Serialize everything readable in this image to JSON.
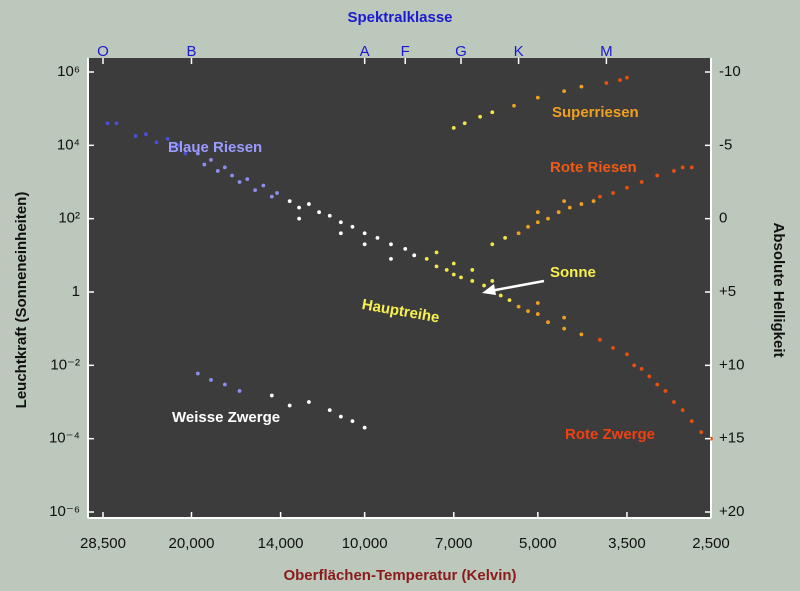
{
  "chart_data": {
    "type": "scatter",
    "title": "Spektralklasse",
    "x_label": "Oberflächen-Temperatur (Kelvin)",
    "y_label": "Leuchtkraft (Sonneneinheiten)",
    "y2_label": "Absolute Helligkeit",
    "log_x": true,
    "log_y": true,
    "grid": false,
    "xlim": [
      28500,
      2500
    ],
    "xticks": [
      {
        "value": 28500,
        "label": "28,500"
      },
      {
        "value": 20000,
        "label": "20,000"
      },
      {
        "value": 14000,
        "label": "14,000"
      },
      {
        "value": 10000,
        "label": "10,000"
      },
      {
        "value": 7000,
        "label": "7,000"
      },
      {
        "value": 5000,
        "label": "5,000"
      },
      {
        "value": 3500,
        "label": "3,500"
      },
      {
        "value": 2500,
        "label": "2,500"
      }
    ],
    "x2ticks": [
      {
        "value": 28500,
        "label": "O"
      },
      {
        "value": 20000,
        "label": "B"
      },
      {
        "value": 10000,
        "label": "A"
      },
      {
        "value": 8500,
        "label": "F"
      },
      {
        "value": 6800,
        "label": "G"
      },
      {
        "value": 5400,
        "label": "K"
      },
      {
        "value": 3800,
        "label": "M"
      }
    ],
    "ylim": [
      1e-06,
      1000000
    ],
    "yticks": [
      {
        "value": 1000000,
        "label": "10⁶"
      },
      {
        "value": 10000,
        "label": "10⁴"
      },
      {
        "value": 100,
        "label": "10²"
      },
      1,
      {
        "value": 0.01,
        "label": "10⁻²"
      },
      {
        "value": 0.0001,
        "label": "10⁻⁴"
      },
      {
        "value": 1e-06,
        "label": "10⁻⁶"
      }
    ],
    "y2lim": [
      20,
      -10
    ],
    "y2ticks": [
      -10,
      -5,
      0,
      {
        "value": 5,
        "label": "+5"
      },
      {
        "value": 10,
        "label": "+10"
      },
      {
        "value": 15,
        "label": "+15"
      },
      {
        "value": 20,
        "label": "+20"
      }
    ],
    "series": [
      {
        "color": "#4a50d8",
        "x": [
          28000,
          27000,
          25000,
          24000,
          23000,
          22000,
          21500,
          21000,
          20500
        ],
        "y": [
          40000,
          40000,
          18000,
          20000,
          12000,
          15000,
          9000,
          10000,
          6000
        ]
      },
      {
        "color": "#8c8ef0",
        "x": [
          19500,
          19000,
          18500,
          18000,
          17500,
          17000,
          16500,
          16000,
          15500,
          15000,
          14500,
          14200,
          19500,
          18500,
          17500,
          16500
        ],
        "y": [
          6000,
          3000,
          4000,
          2000,
          2500,
          1500,
          1000,
          1200,
          600,
          800,
          400,
          500,
          0.006,
          0.004,
          0.003,
          0.002
        ]
      },
      {
        "color": "#ffffff",
        "x": [
          13500,
          13000,
          12500,
          12000,
          11500,
          11000,
          10500,
          10000,
          9500,
          9000,
          8500,
          8200,
          13000,
          11000,
          10000,
          9000,
          14500,
          13500,
          12500,
          11500,
          11000,
          10500,
          10000
        ],
        "y": [
          300,
          200,
          250,
          150,
          120,
          80,
          60,
          40,
          30,
          20,
          15,
          10,
          100,
          40,
          20,
          8,
          0.0015,
          0.0008,
          0.001,
          0.0006,
          0.0004,
          0.0003,
          0.0002
        ]
      },
      {
        "color": "#f2e64a",
        "x": [
          7800,
          7500,
          7200,
          7000,
          6800,
          6500,
          6200,
          6000,
          5800,
          5600,
          7500,
          7000,
          6500,
          6000,
          7000,
          6700,
          6300,
          6000,
          6000,
          5700
        ],
        "y": [
          8,
          5,
          4,
          3,
          2.5,
          2,
          1.5,
          1,
          0.8,
          0.6,
          12,
          6,
          4,
          2,
          30000,
          40000,
          60000,
          80000,
          20,
          30
        ]
      },
      {
        "color": "#f0a020",
        "x": [
          5400,
          5200,
          5000,
          4800,
          4500,
          4200,
          5000,
          4500,
          5400,
          5200,
          5000,
          4800,
          4600,
          4400,
          4200,
          4000,
          5000,
          4500,
          5500,
          5000,
          4500,
          4200
        ],
        "y": [
          0.4,
          0.3,
          0.25,
          0.15,
          0.1,
          0.07,
          0.5,
          0.2,
          40,
          60,
          80,
          100,
          150,
          200,
          250,
          300,
          150,
          300,
          120000,
          200000,
          300000,
          400000
        ]
      },
      {
        "color": "#e85010",
        "x": [
          3900,
          3700,
          3500,
          3300,
          3200,
          3000,
          2900,
          2800,
          2700,
          2600,
          2500,
          3400,
          3100,
          3900,
          3700,
          3500,
          3300,
          3100,
          2900,
          2800,
          2700,
          3800,
          3600,
          3500
        ],
        "y": [
          0.05,
          0.03,
          0.02,
          0.008,
          0.005,
          0.002,
          0.001,
          0.0006,
          0.0003,
          0.00015,
          0.0001,
          0.01,
          0.003,
          400,
          500,
          700,
          1000,
          1500,
          2000,
          2500,
          2500,
          500000,
          600000,
          700000
        ]
      }
    ],
    "annotations": [
      {
        "text": "Blaue Riesen",
        "color": "#9a9cff"
      },
      {
        "text": "Superriesen",
        "color": "#f0a020"
      },
      {
        "text": "Rote Riesen",
        "color": "#f05a14"
      },
      {
        "text": "Sonne",
        "color": "#f8f050"
      },
      {
        "text": "Hauptreihe",
        "color": "#f8f050"
      },
      {
        "text": "Weisse Zwerge",
        "color": "#ffffff"
      },
      {
        "text": "Rote Zwerge",
        "color": "#f04010"
      }
    ]
  }
}
